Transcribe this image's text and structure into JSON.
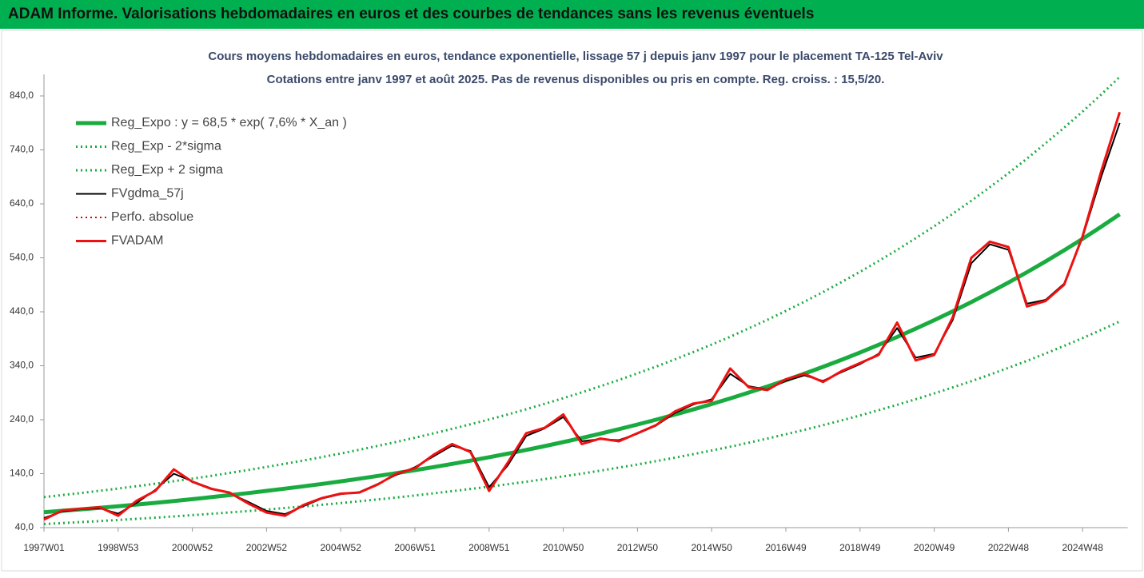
{
  "header": {
    "title": "ADAM Informe. Valorisations hebdomadaires en euros et des courbes de tendances sans les revenus éventuels"
  },
  "chart_data": {
    "type": "line",
    "title": "Cours moyens hebdomadaires en euros, tendance exponentielle, lissage 57 j depuis janv 1997 pour le placement TA-125 Tel-Aviv",
    "subtitle": "Cotations entre janv 1997 et août 2025. Pas de revenus disponibles ou pris en compte. Reg. croiss. : 15,5/20.",
    "categories": [
      "1997W01",
      null,
      null,
      null,
      "1998W53",
      null,
      null,
      null,
      "2000W52",
      null,
      null,
      null,
      "2002W52",
      null,
      null,
      null,
      "2004W52",
      null,
      null,
      null,
      "2006W51",
      null,
      null,
      null,
      "2008W51",
      null,
      null,
      null,
      "2010W50",
      null,
      null,
      null,
      "2012W50",
      null,
      null,
      null,
      "2014W50",
      null,
      null,
      null,
      "2016W49",
      null,
      null,
      null,
      "2018W49",
      null,
      null,
      null,
      "2020W49",
      null,
      null,
      null,
      "2022W48",
      null,
      null,
      null,
      "2024W48",
      null,
      null
    ],
    "ylim": [
      40,
      880
    ],
    "yticks": [
      {
        "value": 40,
        "label": "40,0"
      },
      {
        "value": 140,
        "label": "140,0"
      },
      {
        "value": 240,
        "label": "240,0"
      },
      {
        "value": 340,
        "label": "340,0"
      },
      {
        "value": 440,
        "label": "440,0"
      },
      {
        "value": 540,
        "label": "540,0"
      },
      {
        "value": 640,
        "label": "640,0"
      },
      {
        "value": 740,
        "label": "740,0"
      },
      {
        "value": 840,
        "label": "840,0"
      }
    ],
    "grid": false,
    "legend": "top-left",
    "series": [
      {
        "name": "Reg_Expo : y = 68,5 * exp( 7,6% *  X_an )",
        "color": "#1aab40",
        "line_style": "solid",
        "line_width": 5,
        "values": [
          68.5,
          71.2,
          73.9,
          76.8,
          79.7,
          82.8,
          86.0,
          89.4,
          92.8,
          96.4,
          100.2,
          104.0,
          108.1,
          112.3,
          116.6,
          121.1,
          125.8,
          130.7,
          135.8,
          141.0,
          146.5,
          152.2,
          158.1,
          164.2,
          170.5,
          177.1,
          184.0,
          191.1,
          198.5,
          206.2,
          214.2,
          222.5,
          231.1,
          240.0,
          249.3,
          259.0,
          269.0,
          279.4,
          290.3,
          301.5,
          313.2,
          325.3,
          337.9,
          351.0,
          364.6,
          378.8,
          393.4,
          408.7,
          424.5,
          440.9,
          458.0,
          475.8,
          494.2,
          513.3,
          533.2,
          553.9,
          575.3,
          597.6,
          620.8
        ]
      },
      {
        "name": "Reg_Exp - 2*sigma",
        "color": "#1aab40",
        "line_style": "dotted",
        "line_width": 3,
        "values": [
          46.6,
          48.4,
          50.3,
          52.2,
          54.2,
          56.3,
          58.5,
          60.8,
          63.1,
          65.6,
          68.1,
          70.7,
          73.5,
          76.4,
          79.3,
          82.3,
          85.5,
          88.9,
          92.3,
          95.9,
          99.6,
          103.5,
          107.5,
          111.7,
          115.9,
          120.4,
          125.1,
          129.9,
          135.0,
          140.2,
          145.7,
          151.3,
          157.1,
          163.2,
          169.5,
          176.1,
          182.9,
          190.0,
          197.4,
          205.0,
          213.0,
          221.2,
          229.8,
          238.7,
          247.9,
          257.6,
          267.5,
          277.9,
          288.7,
          299.8,
          311.4,
          323.5,
          336.1,
          349.0,
          362.6,
          376.7,
          391.2,
          406.4,
          422.1
        ]
      },
      {
        "name": "Reg_Exp + 2 sigma",
        "color": "#1aab40",
        "line_style": "dotted",
        "line_width": 3,
        "values": [
          96.6,
          100.4,
          104.2,
          108.3,
          112.4,
          116.7,
          121.3,
          126.1,
          130.8,
          135.9,
          141.3,
          146.6,
          152.4,
          158.3,
          164.4,
          170.8,
          177.4,
          184.3,
          191.5,
          198.8,
          206.6,
          214.6,
          222.9,
          231.5,
          240.4,
          249.7,
          259.4,
          269.5,
          279.9,
          290.7,
          302.0,
          313.7,
          325.9,
          338.4,
          351.5,
          365.2,
          379.3,
          393.6,
          409.3,
          425.1,
          441.6,
          458.7,
          476.4,
          494.9,
          514.1,
          534.1,
          554.7,
          576.3,
          598.5,
          621.7,
          645.8,
          670.9,
          696.8,
          723.8,
          752.1,
          781.0,
          811.1,
          842.5,
          875.3
        ]
      },
      {
        "name": "FVgdma_57j",
        "color": "#000000",
        "line_style": "solid",
        "line_width": 2,
        "values": [
          58,
          70,
          74,
          76,
          66,
          86,
          110,
          140,
          126,
          113,
          104,
          88,
          71,
          65,
          80,
          94,
          102,
          106,
          121,
          138,
          152,
          172,
          192,
          182,
          115,
          155,
          210,
          224,
          245,
          200,
          204,
          202,
          214,
          229,
          252,
          268,
          278,
          325,
          302,
          296,
          312,
          322,
          312,
          328,
          343,
          362,
          410,
          355,
          362,
          425,
          530,
          565,
          555,
          455,
          462,
          492,
          578,
          690,
          790
        ]
      },
      {
        "name": "Perfo. absolue",
        "color": "#e00000",
        "line_style": "dotted",
        "line_width": 2,
        "values": [
          55,
          72,
          75,
          78,
          62,
          90,
          108,
          148,
          125,
          112,
          105,
          85,
          68,
          62,
          82,
          95,
          103,
          105,
          120,
          140,
          150,
          175,
          195,
          180,
          108,
          160,
          215,
          225,
          250,
          195,
          205,
          200,
          215,
          230,
          255,
          270,
          275,
          335,
          300,
          295,
          315,
          325,
          310,
          330,
          345,
          360,
          420,
          350,
          360,
          430,
          540,
          570,
          560,
          450,
          460,
          490,
          580,
          700,
          810
        ]
      },
      {
        "name": "FVADAM",
        "color": "#ee1111",
        "line_style": "solid",
        "line_width": 3,
        "values": [
          55,
          72,
          75,
          78,
          62,
          90,
          108,
          148,
          125,
          112,
          105,
          85,
          68,
          62,
          82,
          95,
          103,
          105,
          120,
          140,
          150,
          175,
          195,
          180,
          108,
          160,
          215,
          225,
          250,
          195,
          205,
          200,
          215,
          230,
          255,
          270,
          275,
          335,
          300,
          295,
          315,
          325,
          310,
          330,
          345,
          360,
          420,
          350,
          360,
          430,
          540,
          570,
          560,
          450,
          460,
          490,
          580,
          700,
          810
        ]
      }
    ]
  }
}
